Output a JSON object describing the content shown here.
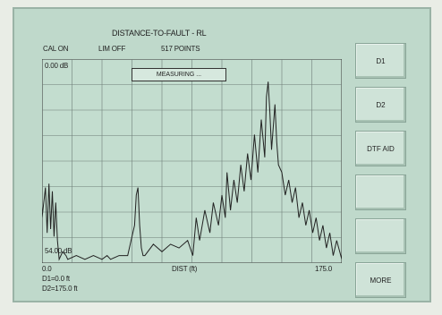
{
  "display": {
    "title": "DISTANCE-TO-FAULT - RL",
    "status": {
      "cal": "CAL ON",
      "lim": "LIM OFF",
      "points": "517 POINTS"
    },
    "banner": "MEASURING ...",
    "y_top_label": "0.00 dB",
    "y_bottom_label": "54.00 dB",
    "x_start_label": "0.0",
    "x_axis_label": "DIST (ft)",
    "x_end_label": "175.0",
    "markers": {
      "d1": "D1=0.0 ft",
      "d2": "D2=175.0 ft"
    }
  },
  "softkeys": [
    {
      "label": "D1"
    },
    {
      "label": "D2"
    },
    {
      "label": "DTF AID"
    },
    {
      "label": ""
    },
    {
      "label": ""
    },
    {
      "label": "MORE"
    }
  ],
  "chart_data": {
    "type": "line",
    "title": "DISTANCE-TO-FAULT - RL",
    "xlabel": "DIST (ft)",
    "ylabel": "",
    "xlim": [
      0,
      175
    ],
    "ylim": [
      0,
      54
    ],
    "y_axis_inverted": true,
    "grid": true,
    "series": [
      {
        "x": [
          0,
          2,
          3,
          4,
          5,
          6,
          7,
          8,
          9,
          10,
          12,
          14,
          15,
          20,
          25,
          30,
          35,
          38,
          40,
          45,
          50,
          52,
          54,
          55,
          56,
          57,
          58,
          59,
          60,
          65,
          70,
          75,
          80,
          85,
          88,
          90,
          92,
          95,
          98,
          100,
          103,
          105,
          107,
          108,
          110,
          112,
          114,
          116,
          118,
          120,
          122,
          124,
          126,
          128,
          130,
          131,
          132,
          133,
          134,
          135,
          136,
          137,
          138,
          140,
          142,
          144,
          146,
          148,
          150,
          152,
          154,
          156,
          158,
          160,
          162,
          164,
          166,
          168,
          170,
          172,
          175
        ],
        "y": [
          42,
          34,
          46,
          33,
          45,
          35,
          47,
          38,
          48,
          53,
          51,
          52,
          53,
          52,
          53,
          52,
          53,
          52,
          53,
          52,
          52,
          48,
          44,
          36,
          34,
          44,
          50,
          52,
          52,
          49,
          51,
          49,
          50,
          48,
          52,
          42,
          48,
          40,
          46,
          38,
          44,
          36,
          42,
          30,
          40,
          32,
          38,
          28,
          35,
          25,
          32,
          20,
          30,
          16,
          26,
          10,
          6,
          14,
          24,
          18,
          12,
          22,
          28,
          30,
          36,
          32,
          38,
          34,
          42,
          38,
          44,
          40,
          46,
          42,
          48,
          44,
          50,
          46,
          52,
          48,
          53
        ]
      }
    ]
  },
  "colors": {
    "screen": "#bfd9cb",
    "trace": "#222222",
    "grid": "#6f7f78",
    "softkey": "#cfe3d8"
  }
}
